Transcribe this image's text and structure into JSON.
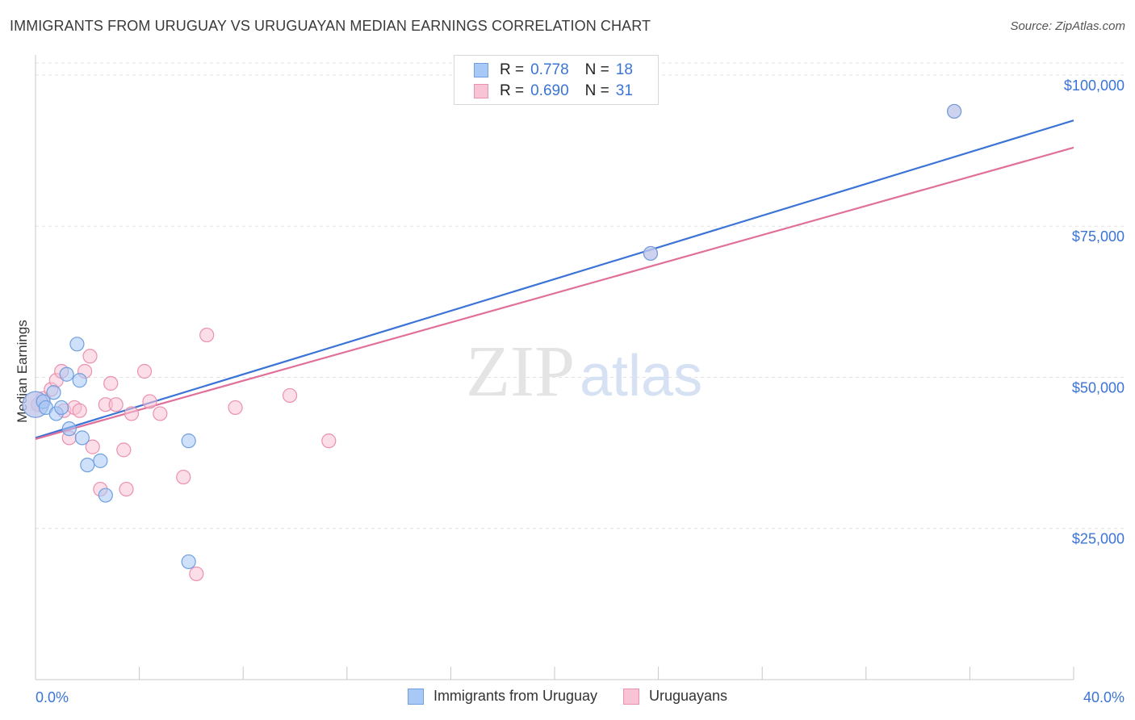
{
  "header": {
    "title": "IMMIGRANTS FROM URUGUAY VS URUGUAYAN MEDIAN EARNINGS CORRELATION CHART",
    "source": "Source: ZipAtlas.com"
  },
  "watermark": {
    "zip": "ZIP",
    "atlas": "atlas"
  },
  "legend_top": {
    "rows": [
      {
        "r_label": "R =",
        "r_value": "0.778",
        "n_label": "N =",
        "n_value": "18",
        "color": "#a8c8f5",
        "border": "#6f9fe0"
      },
      {
        "r_label": "R =",
        "r_value": "0.690",
        "n_label": "N =",
        "n_value": "31",
        "color": "#f8c3d4",
        "border": "#ea90b0"
      }
    ]
  },
  "legend_bottom": {
    "items": [
      {
        "label": "Immigrants from Uruguay",
        "color": "#a8c8f5",
        "border": "#6f9fe0"
      },
      {
        "label": "Uruguayans",
        "color": "#f8c3d4",
        "border": "#ea90b0"
      }
    ]
  },
  "chart_data": {
    "type": "scatter",
    "title": "IMMIGRANTS FROM URUGUAY VS URUGUAYAN MEDIAN EARNINGS CORRELATION CHART",
    "xlabel": "",
    "ylabel": "Median Earnings",
    "xlim": [
      0,
      40
    ],
    "ylim": [
      0,
      102000
    ],
    "x_tick_labels": [
      "0.0%",
      "40.0%"
    ],
    "y_ticks": [
      25000,
      50000,
      75000,
      100000
    ],
    "y_tick_labels": [
      "$25,000",
      "$50,000",
      "$75,000",
      "$100,000"
    ],
    "series": [
      {
        "name": "Immigrants from Uruguay",
        "color": "#3b74d6",
        "fill": "#a8c8f5",
        "stroke": "#6f9fe0",
        "points": [
          {
            "x": 0.0,
            "y": 45500
          },
          {
            "x": 0.3,
            "y": 46000
          },
          {
            "x": 0.4,
            "y": 45000
          },
          {
            "x": 0.7,
            "y": 47500
          },
          {
            "x": 0.8,
            "y": 44000
          },
          {
            "x": 1.0,
            "y": 45000
          },
          {
            "x": 1.2,
            "y": 50500
          },
          {
            "x": 1.3,
            "y": 41500
          },
          {
            "x": 1.6,
            "y": 55500
          },
          {
            "x": 1.7,
            "y": 49500
          },
          {
            "x": 1.8,
            "y": 40000
          },
          {
            "x": 2.0,
            "y": 35500
          },
          {
            "x": 2.5,
            "y": 36200
          },
          {
            "x": 2.7,
            "y": 30500
          },
          {
            "x": 5.9,
            "y": 39500
          },
          {
            "x": 5.9,
            "y": 19500
          },
          {
            "x": 23.7,
            "y": 70500
          },
          {
            "x": 35.4,
            "y": 94000
          }
        ],
        "trend": {
          "x": [
            0,
            40
          ],
          "y": [
            40000,
            92500
          ]
        }
      },
      {
        "name": "Uruguayans",
        "color": "#e0709a",
        "fill": "#f8c3d4",
        "stroke": "#ea90b0",
        "points": [
          {
            "x": 0.1,
            "y": 45500
          },
          {
            "x": 0.3,
            "y": 46500
          },
          {
            "x": 0.6,
            "y": 48000
          },
          {
            "x": 0.8,
            "y": 49500
          },
          {
            "x": 1.0,
            "y": 51000
          },
          {
            "x": 1.1,
            "y": 44500
          },
          {
            "x": 1.3,
            "y": 40000
          },
          {
            "x": 1.5,
            "y": 45000
          },
          {
            "x": 1.7,
            "y": 44500
          },
          {
            "x": 1.9,
            "y": 51000
          },
          {
            "x": 2.1,
            "y": 53500
          },
          {
            "x": 2.2,
            "y": 38500
          },
          {
            "x": 2.5,
            "y": 31500
          },
          {
            "x": 2.7,
            "y": 45500
          },
          {
            "x": 2.9,
            "y": 49000
          },
          {
            "x": 3.1,
            "y": 45500
          },
          {
            "x": 3.4,
            "y": 38000
          },
          {
            "x": 3.5,
            "y": 31500
          },
          {
            "x": 3.7,
            "y": 44000
          },
          {
            "x": 4.2,
            "y": 51000
          },
          {
            "x": 4.4,
            "y": 46000
          },
          {
            "x": 4.8,
            "y": 44000
          },
          {
            "x": 5.7,
            "y": 33500
          },
          {
            "x": 6.2,
            "y": 17500
          },
          {
            "x": 6.6,
            "y": 57000
          },
          {
            "x": 7.7,
            "y": 45000
          },
          {
            "x": 9.8,
            "y": 47000
          },
          {
            "x": 11.3,
            "y": 39500
          },
          {
            "x": 23.7,
            "y": 70500
          },
          {
            "x": 35.4,
            "y": 94000
          },
          {
            "x": 0.0,
            "y": 45500
          }
        ],
        "trend": {
          "x": [
            0,
            40
          ],
          "y": [
            39800,
            88000
          ]
        }
      }
    ]
  }
}
